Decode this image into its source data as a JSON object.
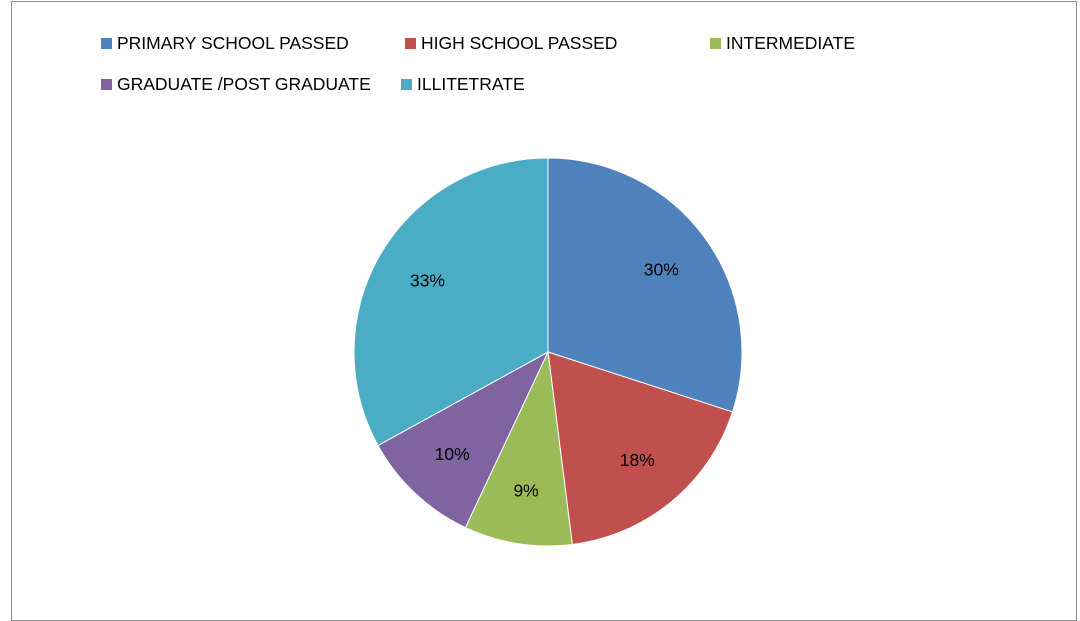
{
  "chart_data": {
    "type": "pie",
    "title": "",
    "categories": [
      "PRIMARY SCHOOL PASSED",
      "HIGH SCHOOL PASSED",
      "INTERMEDIATE",
      "GRADUATE /POST GRADUATE",
      "ILLITETRATE"
    ],
    "values": [
      30,
      18,
      9,
      10,
      33
    ],
    "value_labels": [
      "30%",
      "18%",
      "9%",
      "10%",
      "33%"
    ],
    "colors": [
      "#4f81bd",
      "#c0504d",
      "#9bbb59",
      "#8064a2",
      "#4bacc6"
    ],
    "legend": {
      "placement": "top",
      "entries": [
        "PRIMARY SCHOOL PASSED",
        "HIGH SCHOOL PASSED",
        "INTERMEDIATE",
        "GRADUATE /POST GRADUATE",
        "ILLITETRATE"
      ]
    },
    "start_angle_deg": 0,
    "direction": "clockwise"
  }
}
